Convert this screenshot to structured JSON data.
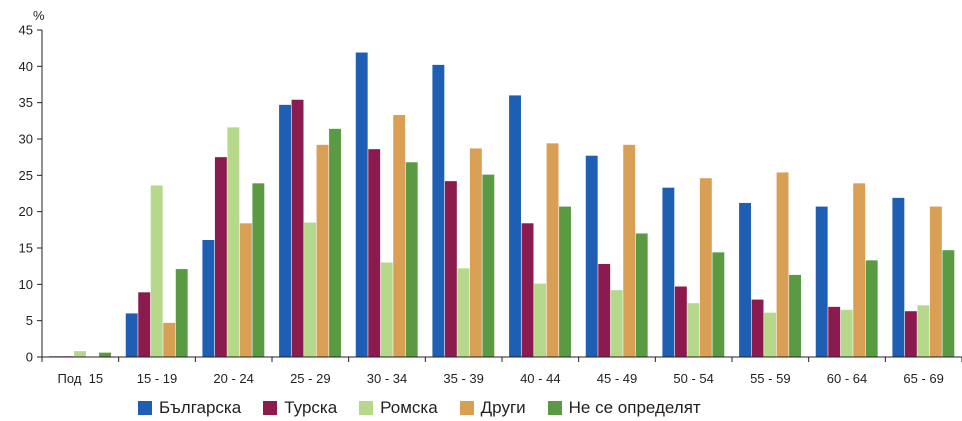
{
  "chart_data": {
    "type": "bar",
    "ylabel": "%",
    "ylim": [
      0,
      45
    ],
    "yticks": [
      0,
      5,
      10,
      15,
      20,
      25,
      30,
      35,
      40,
      45
    ],
    "categories": [
      "Под  15",
      "15 - 19",
      "20 - 24",
      "25 - 29",
      "30 - 34",
      "35 - 39",
      "40 - 44",
      "45 - 49",
      "50 - 54",
      "55 - 59",
      "60 - 64",
      "65 - 69"
    ],
    "series": [
      {
        "name": "Българска",
        "color": "#1f5fb3",
        "values": [
          0.1,
          6.0,
          16.1,
          34.7,
          41.9,
          40.2,
          36.0,
          27.7,
          23.3,
          21.2,
          20.7,
          21.9
        ]
      },
      {
        "name": "Турска",
        "color": "#8b1a4f",
        "values": [
          0.1,
          8.9,
          27.5,
          35.4,
          28.6,
          24.2,
          18.4,
          12.8,
          9.7,
          7.9,
          6.9,
          6.3
        ]
      },
      {
        "name": "Ромска",
        "color": "#b5d88a",
        "values": [
          0.8,
          23.6,
          31.6,
          18.5,
          13.0,
          12.2,
          10.1,
          9.2,
          7.4,
          6.1,
          6.5,
          7.1
        ]
      },
      {
        "name": "Други",
        "color": "#d99f55",
        "values": [
          0.0,
          4.7,
          18.4,
          29.2,
          33.3,
          28.7,
          29.4,
          29.2,
          24.6,
          25.4,
          23.9,
          20.7
        ]
      },
      {
        "name": "Не се определят",
        "color": "#5a9a43",
        "values": [
          0.6,
          12.1,
          23.9,
          31.4,
          26.8,
          25.1,
          20.7,
          17.0,
          14.4,
          11.3,
          13.3,
          14.7
        ]
      }
    ],
    "grid": false,
    "legend_position": "bottom"
  }
}
